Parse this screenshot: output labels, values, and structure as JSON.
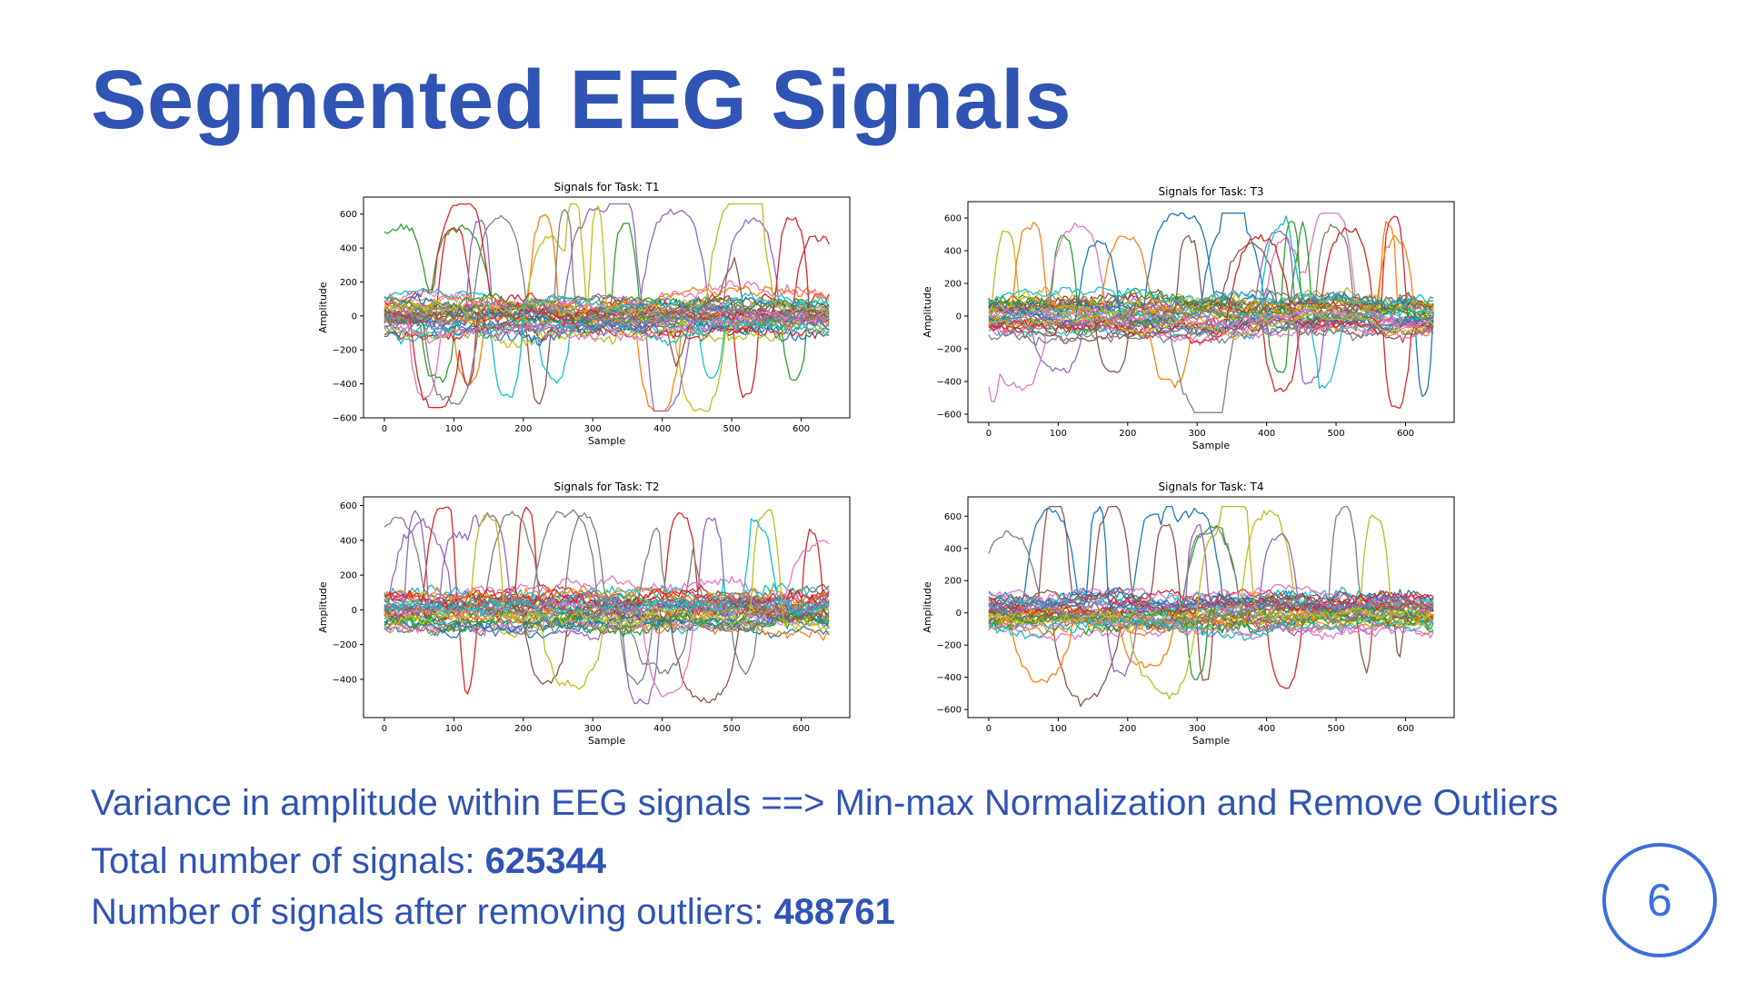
{
  "slide": {
    "title": "Segmented EEG Signals",
    "page_number": "6",
    "lines": {
      "variance": "Variance in amplitude within EEG signals ==> Min-max Normalization and Remove Outliers",
      "total_label": "Total number of signals: ",
      "total_value": "625344",
      "after_label": "Number of signals after removing outliers: ",
      "after_value": "488761"
    }
  },
  "colors": {
    "accent": "#2f54b4",
    "badge": "#3b6fe0",
    "series_palette": [
      "#1f77b4",
      "#ff7f0e",
      "#2ca02c",
      "#d62728",
      "#9467bd",
      "#8c564b",
      "#e377c2",
      "#7f7f7f",
      "#bcbd22",
      "#17becf"
    ]
  },
  "chart_data": [
    {
      "type": "line",
      "title": "Signals for Task: T1",
      "xlabel": "Sample",
      "ylabel": "Amplitude",
      "xlim": [
        -30,
        670
      ],
      "ylim": [
        -600,
        700
      ],
      "xticks": [
        0,
        100,
        200,
        300,
        400,
        500,
        600
      ],
      "yticks": [
        -600,
        -400,
        -200,
        0,
        200,
        400,
        600
      ],
      "sample_count": 640,
      "series_count": 40,
      "amplitude_range": [
        -560,
        660
      ],
      "grid": false,
      "legend": "none"
    },
    {
      "type": "line",
      "title": "Signals for Task: T3",
      "xlabel": "Sample",
      "ylabel": "Amplitude",
      "xlim": [
        -30,
        670
      ],
      "ylim": [
        -650,
        700
      ],
      "xticks": [
        0,
        100,
        200,
        300,
        400,
        500,
        600
      ],
      "yticks": [
        -600,
        -400,
        -200,
        0,
        200,
        400,
        600
      ],
      "sample_count": 640,
      "series_count": 40,
      "amplitude_range": [
        -590,
        630
      ],
      "grid": false,
      "legend": "none"
    },
    {
      "type": "line",
      "title": "Signals for Task: T2",
      "xlabel": "Sample",
      "ylabel": "Amplitude",
      "xlim": [
        -30,
        670
      ],
      "ylim": [
        -620,
        650
      ],
      "xticks": [
        0,
        100,
        200,
        300,
        400,
        500,
        600
      ],
      "yticks": [
        -400,
        -200,
        0,
        200,
        400,
        600
      ],
      "sample_count": 640,
      "series_count": 40,
      "amplitude_range": [
        -540,
        600
      ],
      "grid": false,
      "legend": "none"
    },
    {
      "type": "line",
      "title": "Signals for Task: T4",
      "xlabel": "Sample",
      "ylabel": "Amplitude",
      "xlim": [
        -30,
        670
      ],
      "ylim": [
        -650,
        720
      ],
      "xticks": [
        0,
        100,
        200,
        300,
        400,
        500,
        600
      ],
      "yticks": [
        -600,
        -400,
        -200,
        0,
        200,
        400,
        600
      ],
      "sample_count": 640,
      "series_count": 40,
      "amplitude_range": [
        -580,
        660
      ],
      "grid": false,
      "legend": "none"
    }
  ]
}
